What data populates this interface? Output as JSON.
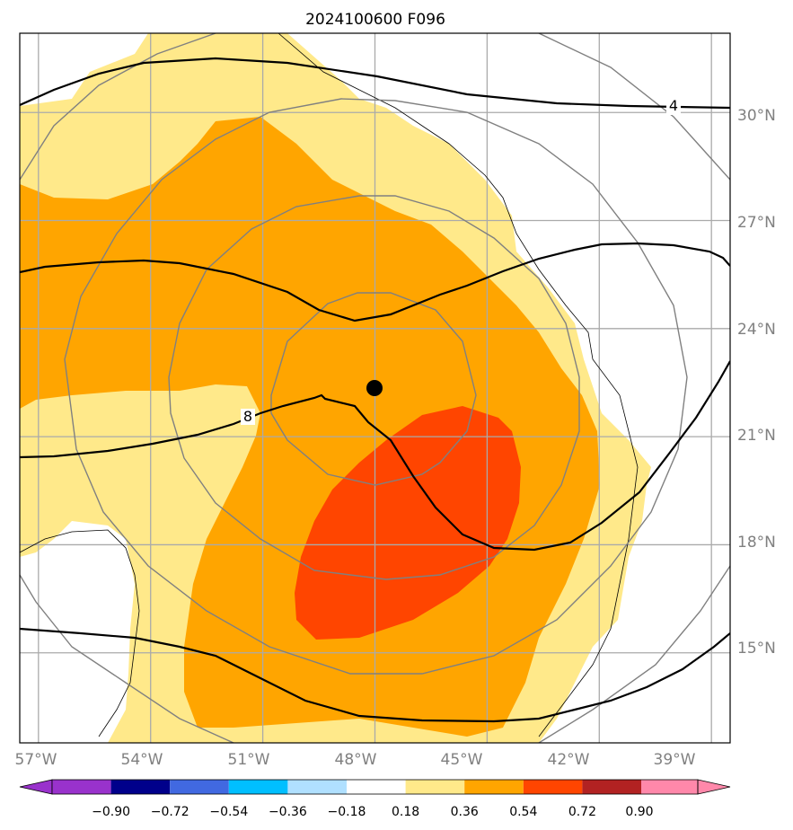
{
  "title": "2024100600 F096",
  "map": {
    "lon_range": [
      -57.5,
      -38.5
    ],
    "lat_range": [
      12.5,
      32.2
    ],
    "gridlines": true,
    "lon_labels": [
      "57°W",
      "54°W",
      "51°W",
      "48°W",
      "45°W",
      "42°W",
      "39°W"
    ],
    "lat_labels": [
      "30°N",
      "27°N",
      "24°N",
      "21°N",
      "18°N",
      "15°N"
    ],
    "center_marker": {
      "lon": -47.5,
      "lat": 22.3
    },
    "contour_labels": [
      "4",
      "8"
    ]
  },
  "colorbar": {
    "tick_labels": [
      "−0.90",
      "−0.72",
      "−0.54",
      "−0.36",
      "−0.18",
      "0.18",
      "0.36",
      "0.54",
      "0.72",
      "0.90"
    ],
    "colors": [
      "#9932cc",
      "#00008b",
      "#4169e1",
      "#00bfff",
      "#b0e0ff",
      "#ffffff",
      "#ffe98a",
      "#ffa500",
      "#ff4500",
      "#b22222",
      "#ff88aa"
    ],
    "extend": "both"
  },
  "colors": {
    "band_lightyellow": "#ffe98a",
    "band_orange": "#ffa500",
    "band_redorange": "#ff4500",
    "grid": "#aaaaaa",
    "range_rings": "#808080",
    "contour": "#000000"
  }
}
